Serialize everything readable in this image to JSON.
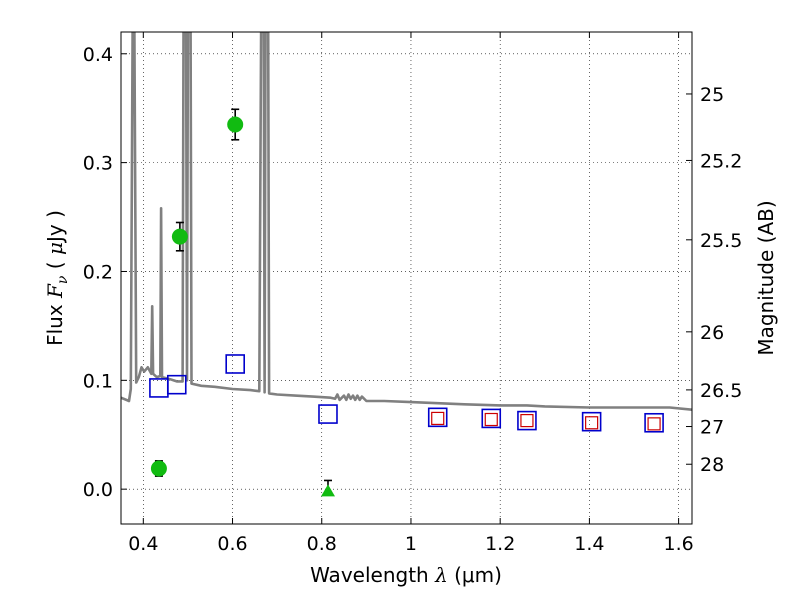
{
  "chart_data": {
    "type": "scatter",
    "title": "",
    "xlabel": "Wavelength  λ (μm)",
    "xlabel_parts": {
      "main": "Wavelength ",
      "symbol": "λ",
      "units": " (μm)"
    },
    "ylabel": "Flux  Fν  ( μJy )",
    "ylabel_parts": {
      "main": "Flux ",
      "symbol": "F",
      "subscript": "ν",
      "units_open": " ( ",
      "units_mu": "μ",
      "units_rest": "Jy )"
    },
    "y2label": "Magnitude (AB)",
    "xlim": [
      0.35,
      1.63
    ],
    "ylim": [
      -0.032,
      0.42
    ],
    "grid": true,
    "x_ticks": [
      0.4,
      0.6,
      0.8,
      1.0,
      1.2,
      1.4,
      1.6
    ],
    "x_tick_labels": [
      "0.4",
      "0.6",
      "0.8",
      "1",
      "1.2",
      "1.4",
      "1.6"
    ],
    "y_ticks": [
      0.0,
      0.1,
      0.2,
      0.3,
      0.4
    ],
    "y_tick_labels": [
      "0.0",
      "0.1",
      "0.2",
      "0.3",
      "0.4"
    ],
    "mag_ticks": [
      25,
      25.2,
      25.5,
      26,
      26.5,
      27,
      28
    ],
    "mag_tick_labels": [
      "25",
      "25.2",
      "25.5",
      "26",
      "26.5",
      "27",
      "28"
    ],
    "colors": {
      "observed": "#11bb11",
      "model_blue": "#0000cc",
      "model_red": "#cc0000",
      "spectrum": "#808080",
      "errorbar": "#000000"
    },
    "series": [
      {
        "name": "observed photometry",
        "marker": "circle",
        "points": [
          {
            "x": 0.435,
            "y": 0.019,
            "err": 0.007
          },
          {
            "x": 0.482,
            "y": 0.232,
            "err": 0.013
          },
          {
            "x": 0.606,
            "y": 0.335,
            "err": 0.014
          }
        ]
      },
      {
        "name": "upper limit",
        "marker": "triangle",
        "points": [
          {
            "x": 0.814,
            "y": -0.002,
            "err": 0.01
          }
        ]
      },
      {
        "name": "model photometry (blue)",
        "marker": "square",
        "points": [
          {
            "x": 0.435,
            "y": 0.093
          },
          {
            "x": 0.475,
            "y": 0.096
          },
          {
            "x": 0.606,
            "y": 0.115
          },
          {
            "x": 0.814,
            "y": 0.069
          },
          {
            "x": 1.06,
            "y": 0.066
          },
          {
            "x": 1.18,
            "y": 0.065
          },
          {
            "x": 1.26,
            "y": 0.063
          },
          {
            "x": 1.405,
            "y": 0.062
          },
          {
            "x": 1.545,
            "y": 0.061
          }
        ]
      },
      {
        "name": "model photometry (red)",
        "marker": "square-small",
        "points": [
          {
            "x": 1.06,
            "y": 0.065
          },
          {
            "x": 1.18,
            "y": 0.064
          },
          {
            "x": 1.26,
            "y": 0.063
          },
          {
            "x": 1.405,
            "y": 0.061
          },
          {
            "x": 1.545,
            "y": 0.06
          }
        ]
      },
      {
        "name": "model spectrum",
        "marker": "line",
        "points": [
          [
            0.35,
            0.084
          ],
          [
            0.368,
            0.081
          ],
          [
            0.372,
            0.092
          ],
          [
            0.376,
            0.42
          ],
          [
            0.38,
            0.42
          ],
          [
            0.384,
            0.098
          ],
          [
            0.39,
            0.103
          ],
          [
            0.396,
            0.112
          ],
          [
            0.402,
            0.108
          ],
          [
            0.41,
            0.112
          ],
          [
            0.418,
            0.106
          ],
          [
            0.42,
            0.168
          ],
          [
            0.422,
            0.106
          ],
          [
            0.43,
            0.103
          ],
          [
            0.438,
            0.104
          ],
          [
            0.44,
            0.258
          ],
          [
            0.442,
            0.103
          ],
          [
            0.46,
            0.101
          ],
          [
            0.475,
            0.099
          ],
          [
            0.488,
            0.099
          ],
          [
            0.49,
            0.42
          ],
          [
            0.496,
            0.42
          ],
          [
            0.498,
            0.1
          ],
          [
            0.5,
            0.42
          ],
          [
            0.506,
            0.42
          ],
          [
            0.508,
            0.097
          ],
          [
            0.53,
            0.095
          ],
          [
            0.56,
            0.094
          ],
          [
            0.6,
            0.092
          ],
          [
            0.64,
            0.091
          ],
          [
            0.66,
            0.09
          ],
          [
            0.664,
            0.42
          ],
          [
            0.67,
            0.42
          ],
          [
            0.672,
            0.089
          ],
          [
            0.674,
            0.42
          ],
          [
            0.68,
            0.42
          ],
          [
            0.682,
            0.088
          ],
          [
            0.7,
            0.087
          ],
          [
            0.74,
            0.086
          ],
          [
            0.78,
            0.085
          ],
          [
            0.82,
            0.084
          ],
          [
            0.83,
            0.083
          ],
          [
            0.835,
            0.087
          ],
          [
            0.84,
            0.082
          ],
          [
            0.85,
            0.086
          ],
          [
            0.855,
            0.082
          ],
          [
            0.86,
            0.087
          ],
          [
            0.865,
            0.083
          ],
          [
            0.87,
            0.086
          ],
          [
            0.875,
            0.082
          ],
          [
            0.88,
            0.086
          ],
          [
            0.885,
            0.082
          ],
          [
            0.89,
            0.085
          ],
          [
            0.9,
            0.081
          ],
          [
            0.94,
            0.081
          ],
          [
            1.0,
            0.08
          ],
          [
            1.06,
            0.079
          ],
          [
            1.12,
            0.078
          ],
          [
            1.2,
            0.077
          ],
          [
            1.26,
            0.077
          ],
          [
            1.3,
            0.076
          ],
          [
            1.4,
            0.075
          ],
          [
            1.5,
            0.075
          ],
          [
            1.58,
            0.075
          ],
          [
            1.63,
            0.073
          ]
        ]
      }
    ]
  }
}
